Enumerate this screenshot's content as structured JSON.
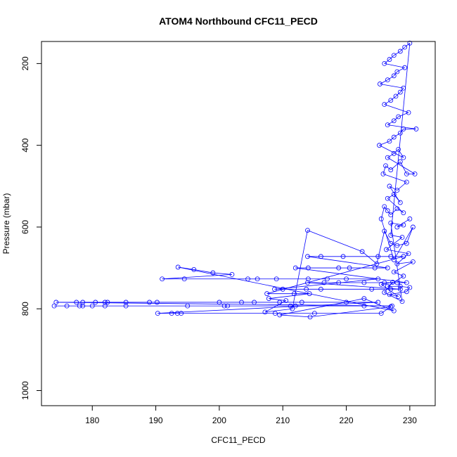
{
  "chart_data": {
    "type": "scatter",
    "title": "ATOM4 Northbound CFC11_PECD",
    "xlabel": "CFC11_PECD",
    "ylabel": "Pressure (mbar)",
    "xlim": [
      172,
      234
    ],
    "ylim": [
      1037,
      146
    ],
    "y_reversed": true,
    "grid": false,
    "legend": "none",
    "xticks": [
      180,
      190,
      200,
      210,
      220,
      230
    ],
    "yticks": [
      200,
      400,
      600,
      800,
      1000
    ],
    "colors": {
      "series": "#0000ff",
      "axes": "#000000"
    },
    "series": [
      {
        "points": [
          [
            174.0,
            793
          ],
          [
            176.0,
            793
          ],
          [
            178.0,
            793
          ],
          [
            178.5,
            793
          ],
          [
            180.0,
            793
          ],
          [
            182.0,
            793
          ],
          [
            185.3,
            793
          ],
          [
            195.0,
            793
          ],
          [
            200.8,
            793
          ],
          [
            201.3,
            793
          ],
          [
            211.2,
            793
          ],
          [
            212.0,
            793
          ],
          [
            222.8,
            793
          ],
          [
            227.2,
            793
          ],
          [
            174.3,
            784
          ],
          [
            177.5,
            784
          ],
          [
            178.5,
            784
          ],
          [
            180.5,
            784
          ],
          [
            182.0,
            784
          ],
          [
            182.4,
            784
          ],
          [
            185.3,
            784
          ],
          [
            189.0,
            784
          ],
          [
            190.2,
            784
          ],
          [
            200.0,
            784
          ],
          [
            203.5,
            784
          ],
          [
            205.5,
            784
          ],
          [
            209.5,
            784
          ],
          [
            213.0,
            784
          ],
          [
            220.0,
            784
          ],
          [
            225.0,
            784
          ],
          [
            190.3,
            811
          ],
          [
            192.5,
            811
          ],
          [
            193.4,
            811
          ],
          [
            194.0,
            811
          ],
          [
            208.8,
            811
          ],
          [
            215.0,
            811
          ],
          [
            225.5,
            811
          ],
          [
            227.0,
            795
          ],
          [
            214.3,
            820
          ],
          [
            209.5,
            815
          ],
          [
            222.8,
            775
          ],
          [
            227.5,
            805
          ],
          [
            193.5,
            698
          ],
          [
            196.0,
            704
          ],
          [
            199.0,
            712
          ],
          [
            202.0,
            716
          ],
          [
            191.0,
            727
          ],
          [
            194.5,
            727
          ],
          [
            204.5,
            727
          ],
          [
            206.0,
            727
          ],
          [
            209.0,
            727
          ],
          [
            214.0,
            727
          ],
          [
            217.0,
            727
          ],
          [
            220.0,
            727
          ],
          [
            225.0,
            727
          ],
          [
            208.7,
            752
          ],
          [
            210.0,
            752
          ],
          [
            213.7,
            752
          ],
          [
            216.0,
            752
          ],
          [
            224.0,
            752
          ],
          [
            227.0,
            752
          ],
          [
            228.5,
            752
          ],
          [
            213.9,
            736
          ],
          [
            216.5,
            736
          ],
          [
            218.8,
            736
          ],
          [
            222.8,
            736
          ],
          [
            226.0,
            736
          ],
          [
            228.0,
            736
          ],
          [
            229.5,
            736
          ],
          [
            212.0,
            700
          ],
          [
            214.0,
            700
          ],
          [
            218.8,
            700
          ],
          [
            220.5,
            700
          ],
          [
            224.5,
            700
          ],
          [
            226.5,
            700
          ],
          [
            213.9,
            672
          ],
          [
            216.0,
            672
          ],
          [
            219.5,
            672
          ],
          [
            225.0,
            672
          ],
          [
            227.0,
            672
          ],
          [
            229.0,
            672
          ],
          [
            207.5,
            763
          ],
          [
            211.8,
            763
          ],
          [
            214.2,
            763
          ],
          [
            207.8,
            775
          ],
          [
            210.5,
            780
          ],
          [
            207.2,
            808
          ],
          [
            211.5,
            800
          ],
          [
            213.9,
            608
          ],
          [
            222.5,
            660
          ],
          [
            224.8,
            690
          ],
          [
            226.0,
            610
          ],
          [
            227.0,
            640
          ],
          [
            228.0,
            645
          ],
          [
            229.5,
            640
          ],
          [
            230.5,
            600
          ],
          [
            227.5,
            680
          ],
          [
            225.5,
            580
          ],
          [
            226.0,
            550
          ],
          [
            226.5,
            560
          ],
          [
            227.0,
            570
          ],
          [
            228.0,
            555
          ],
          [
            229.0,
            565
          ],
          [
            226.5,
            530
          ],
          [
            227.5,
            520
          ],
          [
            228.5,
            540
          ],
          [
            226.8,
            500
          ],
          [
            228.0,
            510
          ],
          [
            229.5,
            490
          ],
          [
            225.8,
            470
          ],
          [
            226.2,
            450
          ],
          [
            227.0,
            460
          ],
          [
            228.5,
            440
          ],
          [
            229.5,
            470
          ],
          [
            230.8,
            470
          ],
          [
            226.5,
            430
          ],
          [
            227.5,
            420
          ],
          [
            228.2,
            410
          ],
          [
            229.0,
            430
          ],
          [
            225.2,
            400
          ],
          [
            226.8,
            390
          ],
          [
            227.5,
            380
          ],
          [
            228.5,
            370
          ],
          [
            229.0,
            360
          ],
          [
            231.0,
            360
          ],
          [
            226.5,
            350
          ],
          [
            227.5,
            340
          ],
          [
            228.2,
            330
          ],
          [
            229.8,
            320
          ],
          [
            226.0,
            300
          ],
          [
            227.0,
            290
          ],
          [
            227.8,
            280
          ],
          [
            228.5,
            270
          ],
          [
            229.0,
            260
          ],
          [
            225.3,
            250
          ],
          [
            226.5,
            240
          ],
          [
            227.5,
            230
          ],
          [
            228.0,
            220
          ],
          [
            229.2,
            210
          ],
          [
            226.0,
            200
          ],
          [
            226.8,
            190
          ],
          [
            227.5,
            180
          ],
          [
            228.5,
            170
          ],
          [
            229.2,
            160
          ],
          [
            230.0,
            150
          ],
          [
            227.0,
            620
          ],
          [
            228.8,
            625
          ],
          [
            226.3,
            655
          ],
          [
            229.8,
            665
          ],
          [
            228.0,
            690
          ],
          [
            230.5,
            685
          ],
          [
            227.5,
            710
          ],
          [
            229.0,
            720
          ],
          [
            226.5,
            745
          ],
          [
            228.5,
            745
          ],
          [
            230.0,
            748
          ],
          [
            229.5,
            758
          ],
          [
            226.8,
            765
          ],
          [
            228.2,
            770
          ],
          [
            225.5,
            740
          ],
          [
            227.3,
            735
          ],
          [
            226.0,
            760
          ],
          [
            228.8,
            782
          ],
          [
            227.0,
            590
          ],
          [
            229.0,
            595
          ],
          [
            228.0,
            600
          ],
          [
            230.0,
            580
          ]
        ]
      }
    ]
  }
}
